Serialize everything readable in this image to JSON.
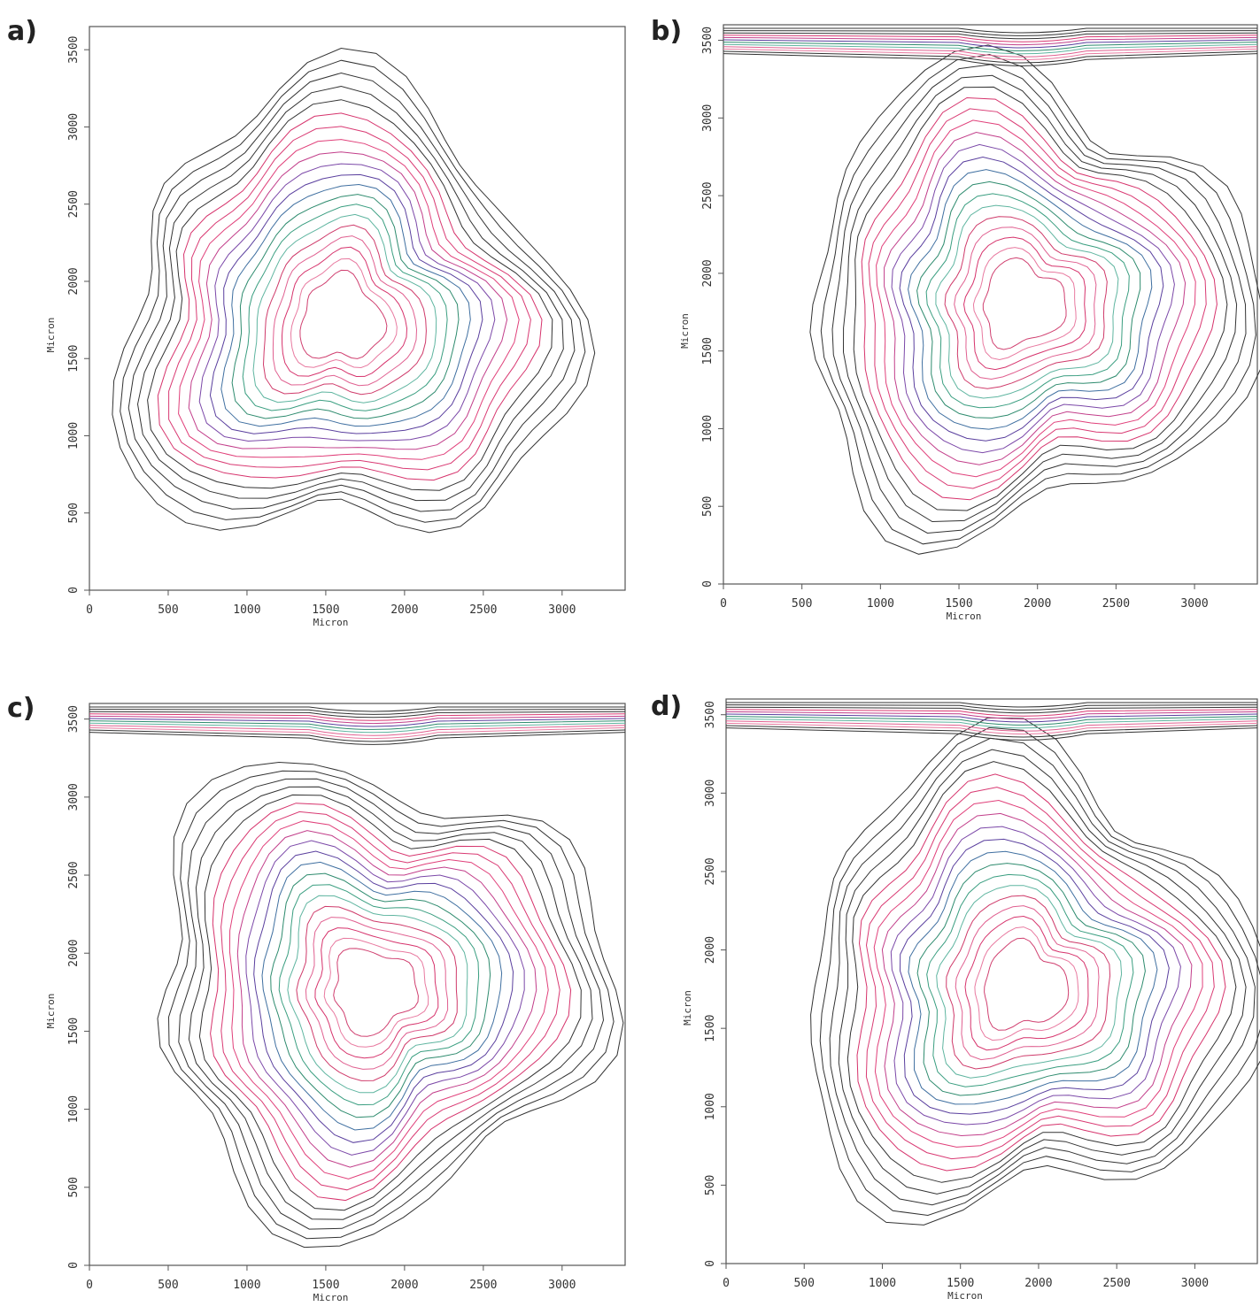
{
  "chart_data": [
    {
      "type": "contour",
      "panel": "a)",
      "xlabel": "Micron",
      "ylabel": "Micron",
      "xlim": [
        0,
        3400
      ],
      "ylim": [
        0,
        3650
      ],
      "xticks": [
        0,
        500,
        1000,
        1500,
        2000,
        2500,
        3000
      ],
      "yticks": [
        0,
        500,
        1000,
        1500,
        2000,
        2500,
        3000,
        3500
      ],
      "band": false
    },
    {
      "type": "contour",
      "panel": "b)",
      "xlabel": "Micron",
      "ylabel": "Micron",
      "xlim": [
        0,
        3400
      ],
      "ylim": [
        0,
        3600
      ],
      "xticks": [
        0,
        500,
        1000,
        1500,
        2000,
        2500,
        3000
      ],
      "yticks": [
        0,
        500,
        1000,
        1500,
        2000,
        2500,
        3000,
        3500
      ],
      "band": true
    },
    {
      "type": "contour",
      "panel": "c)",
      "xlabel": "Micron",
      "ylabel": "Micron",
      "xlim": [
        0,
        3400
      ],
      "ylim": [
        0,
        3600
      ],
      "xticks": [
        0,
        500,
        1000,
        1500,
        2000,
        2500,
        3000
      ],
      "yticks": [
        0,
        500,
        1000,
        1500,
        2000,
        2500,
        3000,
        3500
      ],
      "band": true
    },
    {
      "type": "contour",
      "panel": "d)",
      "xlabel": "Micron",
      "ylabel": "Micron",
      "xlim": [
        0,
        3400
      ],
      "ylim": [
        0,
        3600
      ],
      "xticks": [
        0,
        500,
        1000,
        1500,
        2000,
        2500,
        3000
      ],
      "yticks": [
        0,
        500,
        1000,
        1500,
        2000,
        2500,
        3000,
        3500
      ],
      "band": true
    }
  ]
}
